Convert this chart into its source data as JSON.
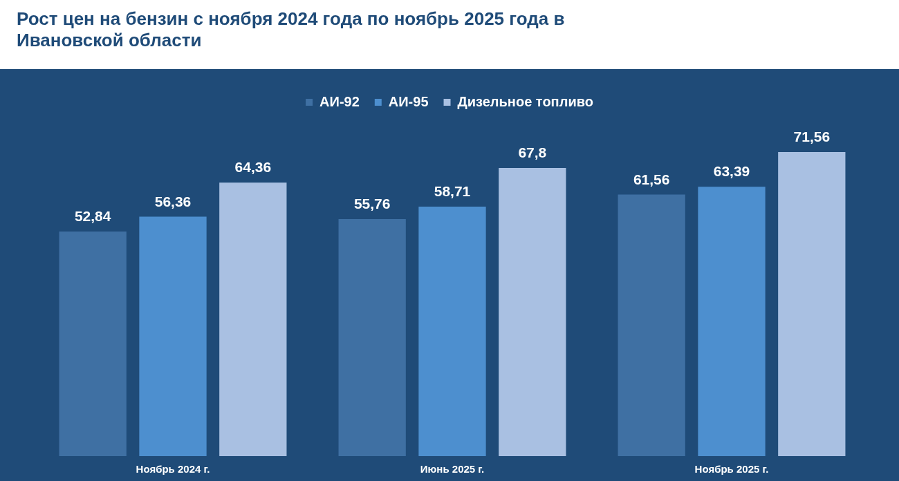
{
  "chart_data": {
    "type": "bar",
    "title": "Рост цен на бензин с ноября 2024 года по ноябрь 2025 года в Ивановской области",
    "categories": [
      "Ноябрь 2024 г.",
      "Июнь 2025 г.",
      "Ноябрь 2025 г."
    ],
    "series": [
      {
        "name": "АИ-92",
        "color": "#3f70a3",
        "values": [
          52.84,
          55.76,
          61.56
        ],
        "value_labels": [
          "52,84",
          "55,76",
          "61,56"
        ]
      },
      {
        "name": "АИ-95",
        "color": "#4d8fcf",
        "values": [
          56.36,
          58.71,
          63.39
        ],
        "value_labels": [
          "56,36",
          "58,71",
          "63,39"
        ]
      },
      {
        "name": "Дизельное топливо",
        "color": "#a9c0e2",
        "values": [
          64.36,
          67.8,
          71.56
        ],
        "value_labels": [
          "64,36",
          "67,8",
          "71,56"
        ]
      }
    ],
    "legend": "top",
    "grid": false
  }
}
